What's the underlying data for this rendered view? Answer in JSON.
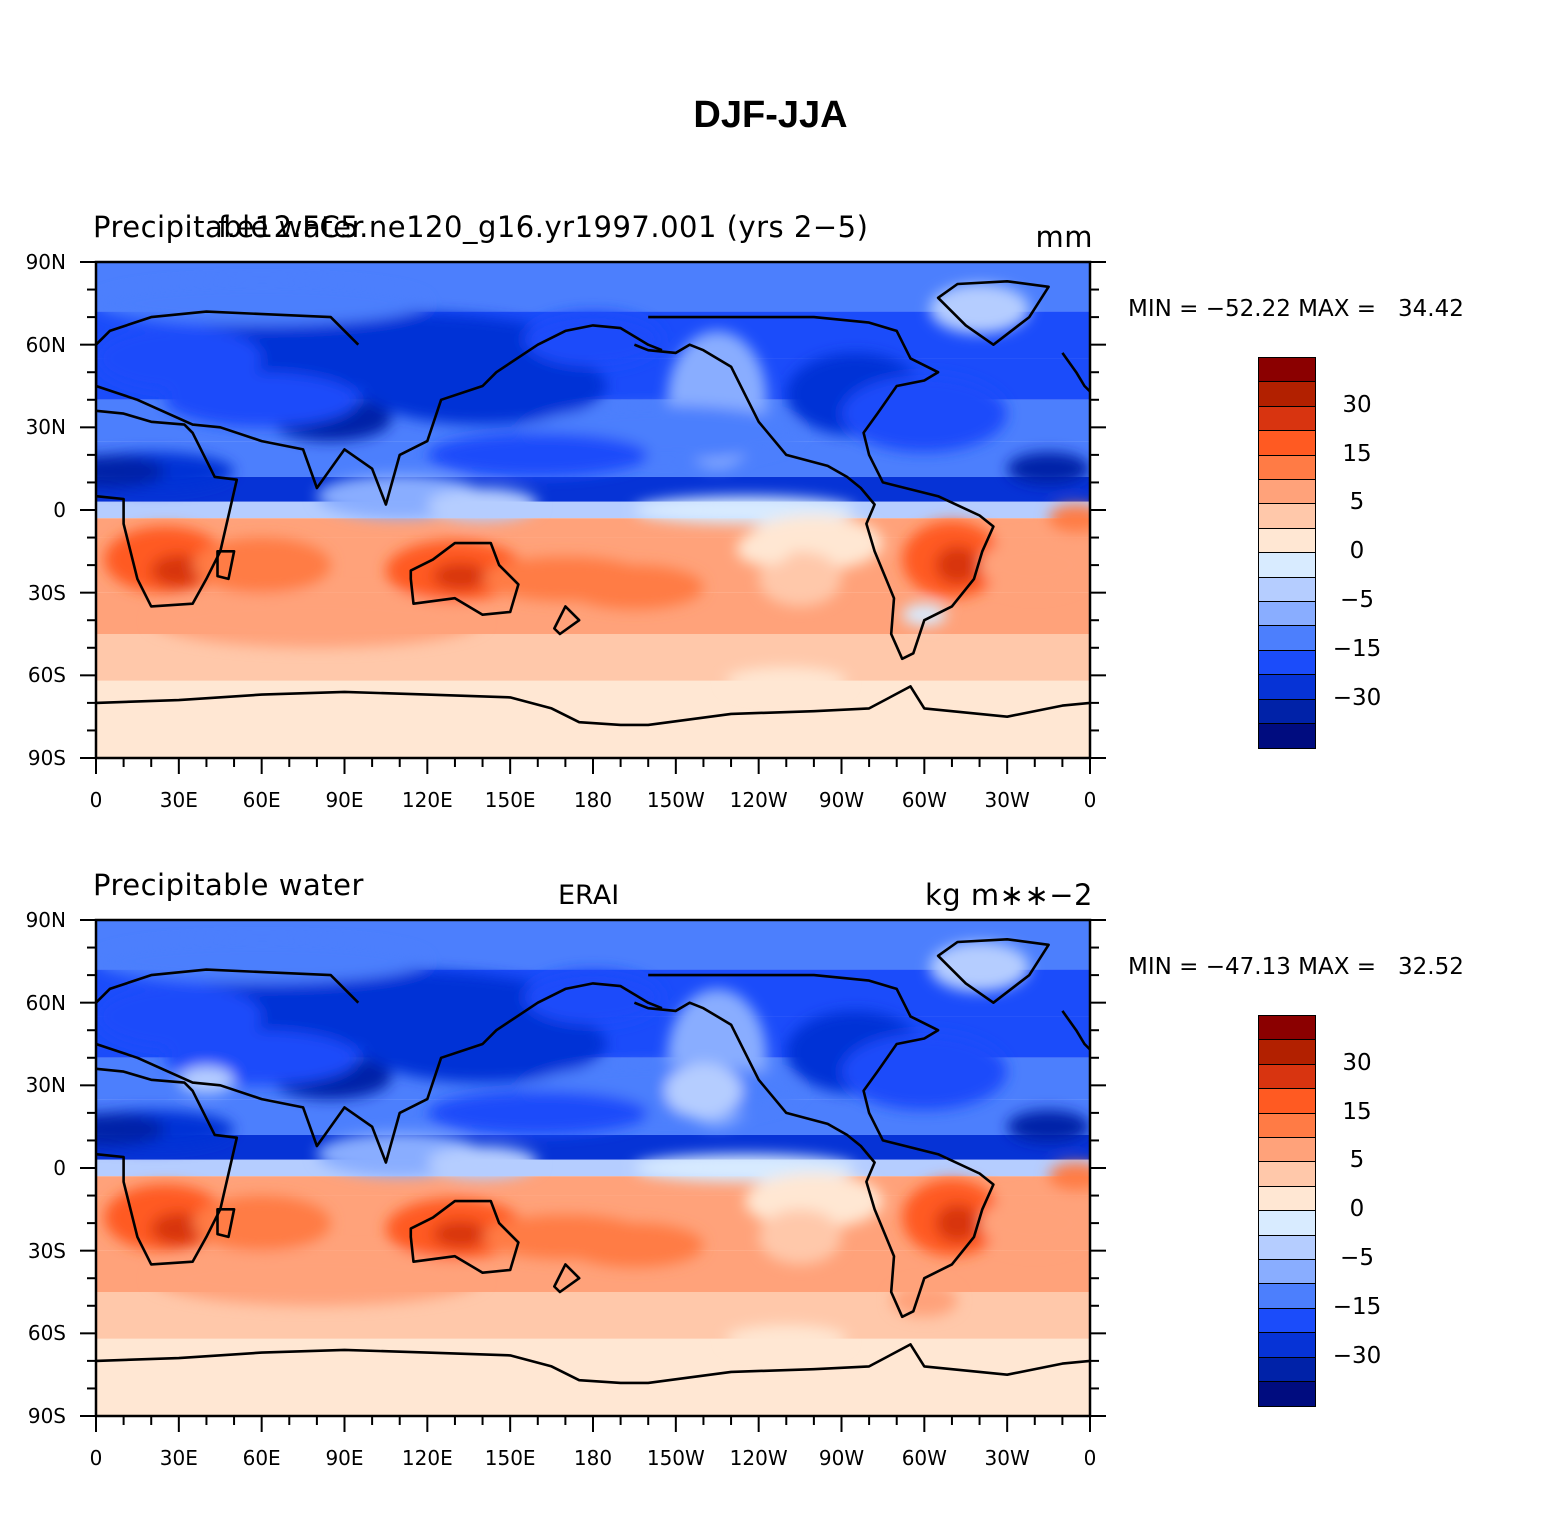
{
  "figure": {
    "title": "DJF-JJA"
  },
  "panels": [
    {
      "left_label": "Precipitable water",
      "center_label": "f.e12.FC5.ne120_g16.yr1997.001 (yrs 2−5)",
      "right_label": "mm",
      "min_label": "MIN = −52.22",
      "max_label": "MAX =   34.42"
    },
    {
      "left_label": "Precipitable water",
      "center_label": "ERAI",
      "right_label": "kg m∗∗−2",
      "min_label": "MIN = −47.13",
      "max_label": "MAX =   32.52"
    }
  ],
  "axes": {
    "y_ticks": [
      "90N",
      "60N",
      "30N",
      "0",
      "30S",
      "60S",
      "90S"
    ],
    "x_ticks": [
      "0",
      "30E",
      "60E",
      "90E",
      "120E",
      "150E",
      "180",
      "150W",
      "120W",
      "90W",
      "60W",
      "30W",
      "0"
    ]
  },
  "colorbar": {
    "colors": [
      "#8b0000",
      "#b22000",
      "#d83410",
      "#ff5a22",
      "#ff7b45",
      "#ffa27a",
      "#ffc8aa",
      "#ffe7d3",
      "#d8ebff",
      "#b5cdff",
      "#89adff",
      "#4c7ffd",
      "#1b4cfa",
      "#0633d6",
      "#0022a8",
      "#000c7f"
    ],
    "labels": [
      "30",
      "15",
      "5",
      "0",
      "−5",
      "−15",
      "−30"
    ]
  },
  "chart_data": [
    {
      "type": "heatmap",
      "projection": "cylindrical equidistant, centered on 180",
      "variable": "Precipitable water",
      "units": "mm",
      "case": "f.e12.FC5.ne120_g16.yr1997.001 (yrs 2−5)",
      "season_difference": "DJF-JJA",
      "min": -52.22,
      "max": 34.42,
      "contour_levels": [
        -40,
        -35,
        -30,
        -25,
        -20,
        -15,
        -10,
        -5,
        -2,
        0,
        2,
        5,
        10,
        15,
        20,
        30,
        40
      ],
      "xlim": [
        0,
        360
      ],
      "ylim": [
        -90,
        90
      ]
    },
    {
      "type": "heatmap",
      "projection": "cylindrical equidistant, centered on 180",
      "variable": "Precipitable water",
      "units": "kg m∗∗−2",
      "case": "ERAI",
      "season_difference": "DJF-JJA",
      "min": -47.13,
      "max": 32.52,
      "contour_levels": [
        -40,
        -35,
        -30,
        -25,
        -20,
        -15,
        -10,
        -5,
        -2,
        0,
        2,
        5,
        10,
        15,
        20,
        30,
        40
      ],
      "xlim": [
        0,
        360
      ],
      "ylim": [
        -90,
        90
      ]
    }
  ]
}
